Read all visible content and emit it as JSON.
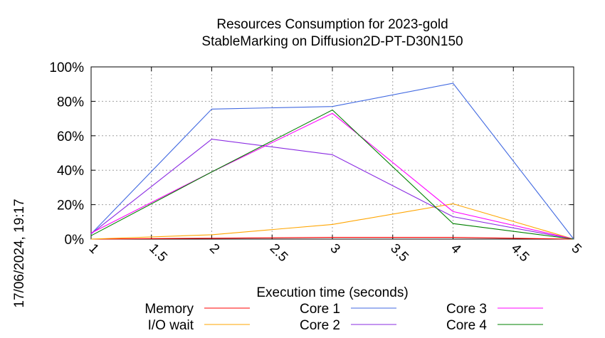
{
  "chart_data": {
    "type": "line",
    "title_line1": "Resources Consumption for 2023-gold",
    "title_line2": "StableMarking on Diffusion2D-PT-D30N150",
    "xlabel": "Execution time (seconds)",
    "ylabel": "",
    "xlim": [
      1,
      5
    ],
    "ylim": [
      0,
      100
    ],
    "x_ticks": [
      "1",
      "1.5",
      "2",
      "2.5",
      "3",
      "3.5",
      "4",
      "4.5",
      "5"
    ],
    "y_ticks": [
      "0%",
      "20%",
      "40%",
      "60%",
      "80%",
      "100%"
    ],
    "grid": true,
    "legend_position": "bottom",
    "timestamp": "17/06/2024, 19:17",
    "x": [
      1,
      2,
      3,
      4,
      5
    ],
    "series": [
      {
        "name": "Memory",
        "color": "#ff0000",
        "values": [
          0,
          0.5,
          1,
          1,
          0
        ]
      },
      {
        "name": "I/O wait",
        "color": "#ffa500",
        "values": [
          0,
          2.5,
          8.5,
          20.5,
          0
        ]
      },
      {
        "name": "Core 1",
        "color": "#4169e1",
        "values": [
          3,
          75.5,
          77,
          90.5,
          0
        ]
      },
      {
        "name": "Core 2",
        "color": "#8a2be2",
        "values": [
          3,
          58,
          49,
          13,
          0
        ]
      },
      {
        "name": "Core 3",
        "color": "#ff00ff",
        "values": [
          3.5,
          39,
          73,
          16,
          0
        ]
      },
      {
        "name": "Core 4",
        "color": "#008000",
        "values": [
          2,
          39,
          75,
          9,
          0
        ]
      }
    ]
  }
}
